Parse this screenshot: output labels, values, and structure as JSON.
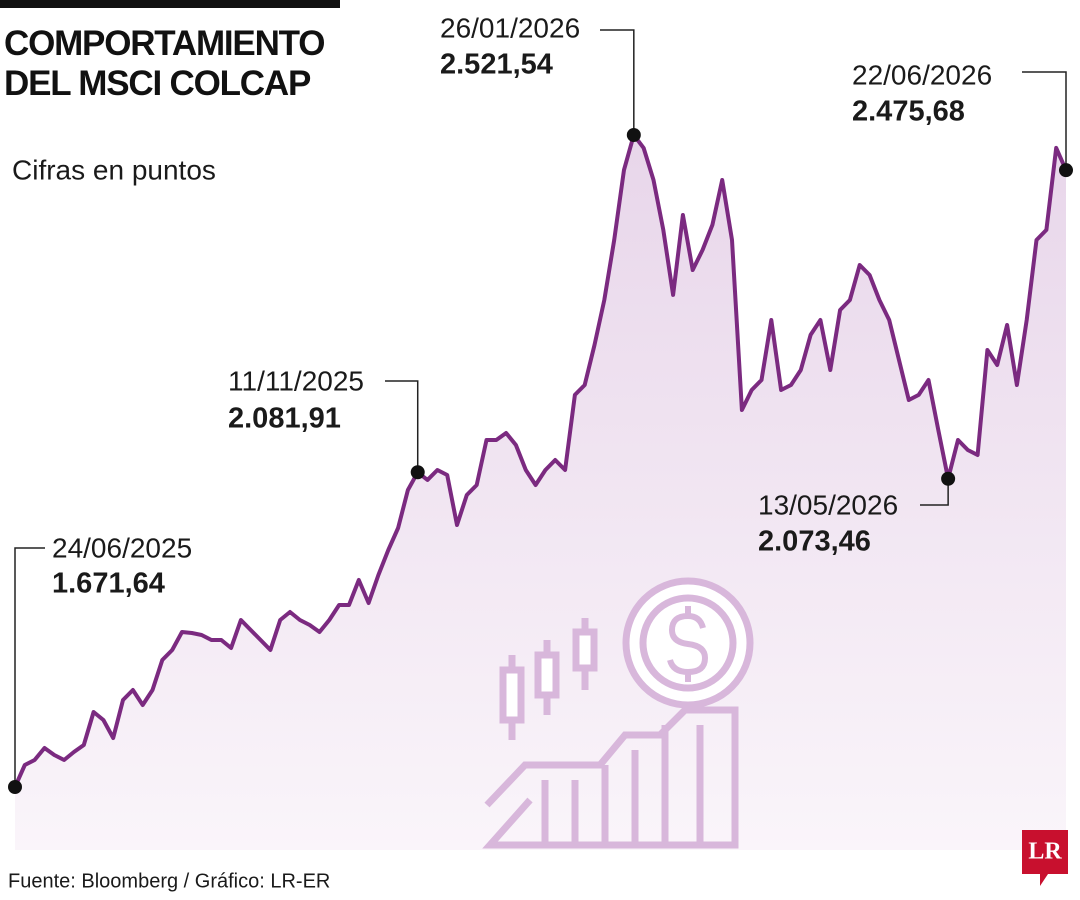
{
  "chart_data": {
    "type": "area",
    "title": "COMPORTAMIENTO DEL MSCI COLCAP",
    "subtitle": "Cifras en puntos",
    "source": "Fuente: Bloomberg / Gráfico: LR-ER",
    "logo": "LR",
    "color": "#7b2a80",
    "values": [
      1671.64,
      1700.3,
      1706.8,
      1722.5,
      1713.4,
      1706.8,
      1717.3,
      1726.4,
      1769.4,
      1759.0,
      1735.5,
      1785.1,
      1798.1,
      1778.5,
      1798.1,
      1837.2,
      1850.2,
      1873.7,
      1872.4,
      1869.8,
      1863.3,
      1863.3,
      1852.8,
      1889.3,
      1876.3,
      1863.3,
      1850.2,
      1889.3,
      1899.8,
      1889.3,
      1882.8,
      1873.7,
      1889.3,
      1908.9,
      1908.9,
      1941.5,
      1911.5,
      1948.0,
      1980.6,
      2009.3,
      2058.8,
      2081.91,
      2071.9,
      2084.9,
      2078.4,
      2013.2,
      2052.3,
      2065.3,
      2124.0,
      2124.0,
      2133.1,
      2117.5,
      2084.9,
      2065.3,
      2084.9,
      2097.9,
      2084.9,
      2182.7,
      2195.7,
      2247.8,
      2306.5,
      2384.7,
      2476.0,
      2521.54,
      2504.7,
      2462.9,
      2397.8,
      2313.1,
      2417.3,
      2345.6,
      2371.7,
      2404.3,
      2462.9,
      2384.7,
      2163.1,
      2189.2,
      2202.2,
      2280.4,
      2189.2,
      2195.7,
      2215.2,
      2260.9,
      2280.4,
      2215.2,
      2293.4,
      2306.5,
      2352.1,
      2339.1,
      2306.5,
      2280.4,
      2228.3,
      2176.1,
      2182.7,
      2202.2,
      2137.0,
      2073.46,
      2124.0,
      2110.9,
      2104.4,
      2241.3,
      2221.7,
      2273.9,
      2195.7,
      2280.4,
      2384.7,
      2397.8,
      2504.7,
      2475.68
    ],
    "annotations": [
      {
        "date": "24/06/2025",
        "value": 1671.64,
        "label": "1.671,64"
      },
      {
        "date": "11/11/2025",
        "value": 2081.91,
        "label": "2.081,91"
      },
      {
        "date": "26/01/2026",
        "value": 2521.54,
        "label": "2.521,54"
      },
      {
        "date": "13/05/2026",
        "value": 2073.46,
        "label": "2.073,46"
      },
      {
        "date": "22/06/2026",
        "value": 2475.68,
        "label": "2.475,68"
      }
    ]
  }
}
